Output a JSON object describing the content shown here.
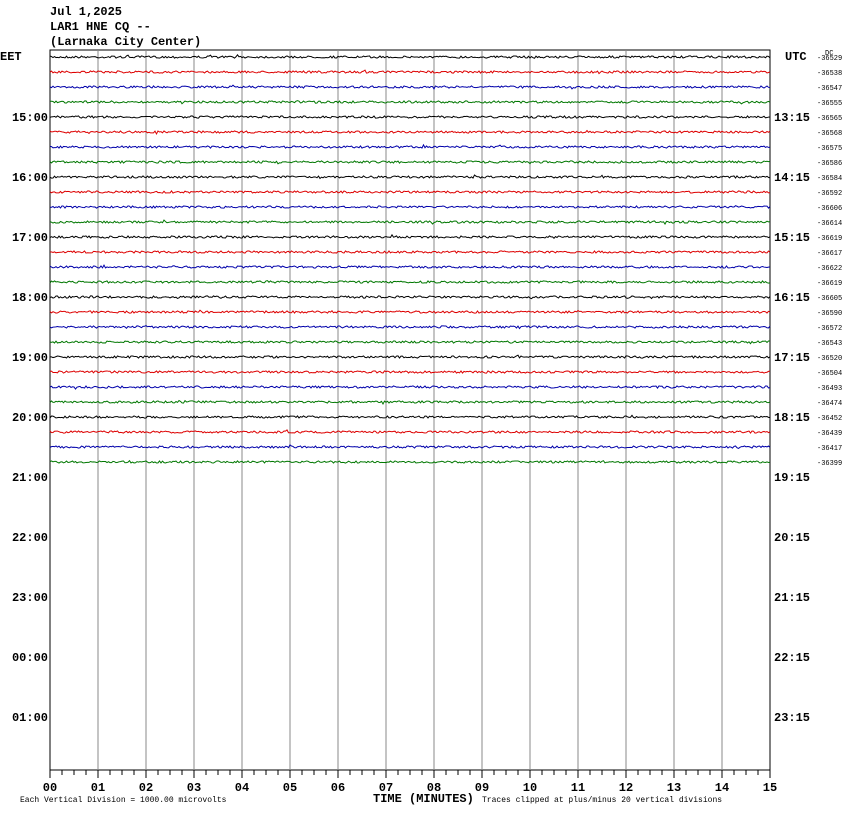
{
  "header": {
    "lines": [
      "Jul 1,2025",
      "LAR1 HNE CQ --",
      "(Larnaka City Center)"
    ]
  },
  "left_axis": {
    "title": "EET",
    "labels": [
      "15:00",
      "16:00",
      "17:00",
      "18:00",
      "19:00",
      "20:00",
      "21:00",
      "22:00",
      "23:00",
      "00:00",
      "01:00"
    ]
  },
  "right_axis": {
    "title": "UTC",
    "labels": [
      "13:15",
      "14:15",
      "15:15",
      "16:15",
      "17:15",
      "18:15",
      "19:15",
      "20:15",
      "21:15",
      "22:15",
      "23:15"
    ]
  },
  "dc": {
    "title": "DC",
    "values": [
      -36529,
      -36538,
      -36547,
      -36555,
      -36565,
      -36568,
      -36575,
      -36586,
      -36584,
      -36592,
      -36606,
      -36614,
      -36619,
      -36617,
      -36622,
      -36619,
      -36605,
      -36590,
      -36572,
      -36543,
      -36520,
      -36504,
      -36493,
      -36474,
      -36452,
      -36439,
      -36417,
      -36399
    ]
  },
  "x_axis": {
    "labels": [
      "00",
      "01",
      "02",
      "03",
      "04",
      "05",
      "06",
      "07",
      "08",
      "09",
      "10",
      "11",
      "12",
      "13",
      "14",
      "15"
    ],
    "title": "TIME (MINUTES)"
  },
  "footer": {
    "scale_note": "Each Vertical Division = 1000.00 microvolts",
    "clip_note": "Traces clipped at plus/minus 20 vertical divisions"
  },
  "trace_colors": [
    "#000000",
    "#dd0000",
    "#0000aa",
    "#007700"
  ]
}
